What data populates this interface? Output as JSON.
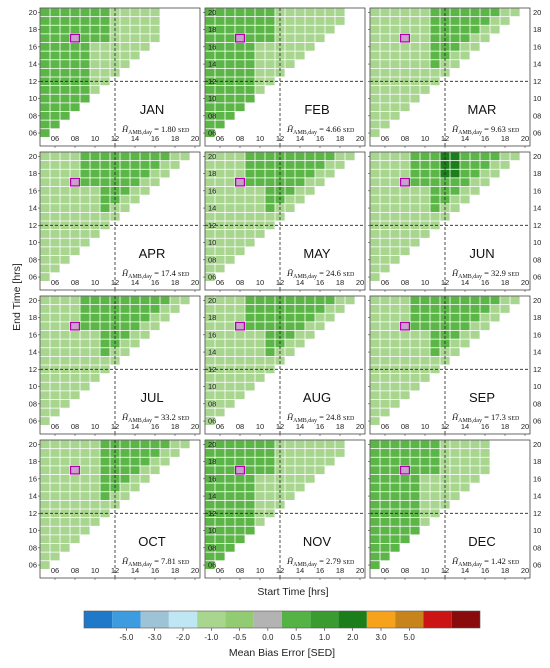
{
  "chart_data": {
    "type": "heatmap",
    "xlabel": "Start Time [hrs]",
    "ylabel": "End Time [hrs]",
    "x_ticks": [
      "06",
      "08",
      "10",
      "12",
      "14",
      "16",
      "18",
      "20"
    ],
    "y_ticks": [
      "06",
      "08",
      "10",
      "12",
      "14",
      "16",
      "18",
      "20"
    ],
    "x_range": [
      4.5,
      20.5
    ],
    "y_range": [
      4.5,
      20.5
    ],
    "reference_lines": {
      "x": 12,
      "y": 12
    },
    "highlight_cell": {
      "start": 8,
      "end": 17
    },
    "colorbar": {
      "label": "Mean Bias Error [SED]",
      "ticks": [
        "-5.0",
        "-3.0",
        "-2.0",
        "-1.0",
        "-0.5",
        "0.0",
        "0.5",
        "1.0",
        "2.0",
        "3.0",
        "5.0"
      ],
      "colors": [
        "#1f78c8",
        "#3d9be0",
        "#9ec2d6",
        "#bfe7f3",
        "#a8d68f",
        "#91cc72",
        "#b3b3b3",
        "#55b345",
        "#3a9b30",
        "#1b7e1b",
        "#f7a21b",
        "#c8841c",
        "#cc1414",
        "#8a0b0b"
      ]
    },
    "panels": [
      {
        "month": "JAN",
        "h_value": "1.80",
        "unit": "SED",
        "min_start": 5,
        "max_start": 16,
        "max_end": 20
      },
      {
        "month": "FEB",
        "h_value": "4.66",
        "unit": "SED",
        "min_start": 5,
        "max_start": 18,
        "max_end": 20
      },
      {
        "month": "MAR",
        "h_value": "9.63",
        "unit": "SED",
        "min_start": 5,
        "max_start": 19,
        "max_end": 20
      },
      {
        "month": "APR",
        "h_value": "17.4",
        "unit": "SED",
        "min_start": 5,
        "max_start": 19,
        "max_end": 20
      },
      {
        "month": "MAY",
        "h_value": "24.6",
        "unit": "SED",
        "min_start": 5,
        "max_start": 19,
        "max_end": 20
      },
      {
        "month": "JUN",
        "h_value": "32.9",
        "unit": "SED",
        "min_start": 5,
        "max_start": 19,
        "max_end": 20
      },
      {
        "month": "JUL",
        "h_value": "33.2",
        "unit": "SED",
        "min_start": 5,
        "max_start": 19,
        "max_end": 20
      },
      {
        "month": "AUG",
        "h_value": "24.8",
        "unit": "SED",
        "min_start": 5,
        "max_start": 19,
        "max_end": 20
      },
      {
        "month": "SEP",
        "h_value": "17.3",
        "unit": "SED",
        "min_start": 5,
        "max_start": 19,
        "max_end": 20
      },
      {
        "month": "OCT",
        "h_value": "7.81",
        "unit": "SED",
        "min_start": 5,
        "max_start": 19,
        "max_end": 20
      },
      {
        "month": "NOV",
        "h_value": "2.79",
        "unit": "SED",
        "min_start": 5,
        "max_start": 18,
        "max_end": 20
      },
      {
        "month": "DEC",
        "h_value": "1.42",
        "unit": "SED",
        "min_start": 5,
        "max_start": 16,
        "max_end": 20
      }
    ],
    "note_prefix": "H̄",
    "note_subscript": "AMB,day",
    "note_equals": " = "
  }
}
